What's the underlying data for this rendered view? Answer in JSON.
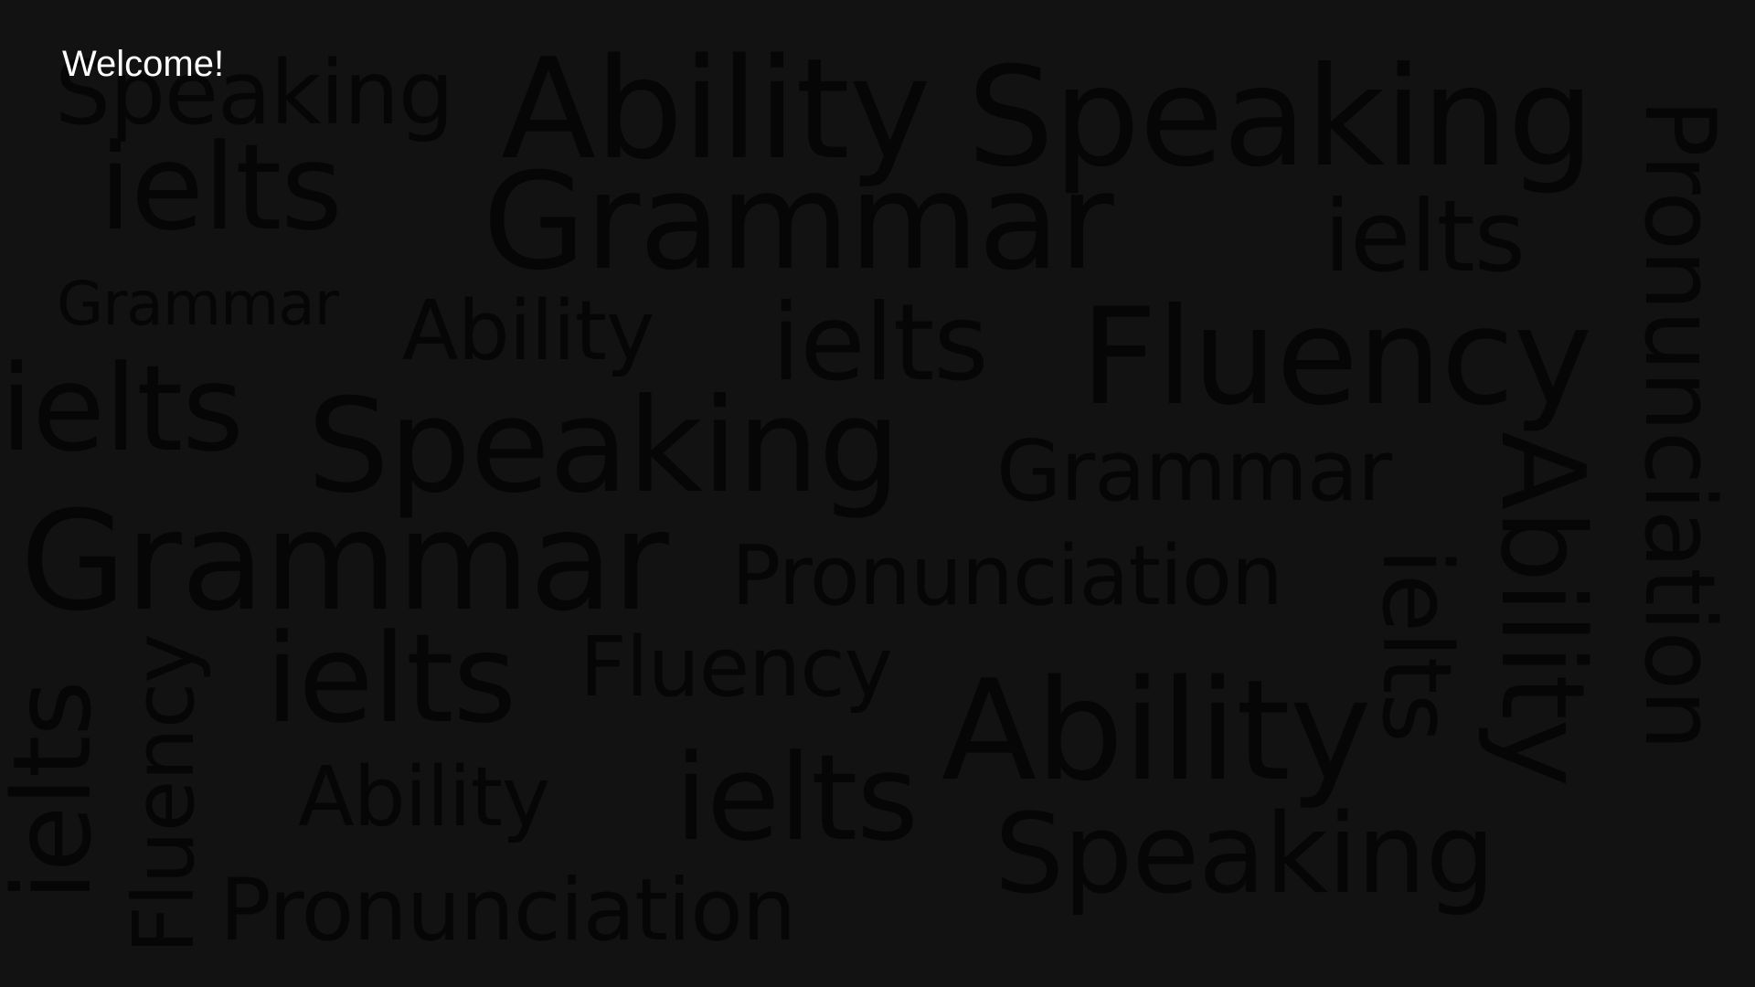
{
  "welcome": "Welcome!",
  "colors": {
    "background": "#121212",
    "cloud_text": "#060606",
    "welcome_text": "#ffffff"
  },
  "cloud": {
    "w01": "Speaking",
    "w02": "Ability",
    "w03": "Speaking",
    "w04": "Pronunciation",
    "w05": "ielts",
    "w06": "Grammar",
    "w07": "ielts",
    "w08": "Grammar",
    "w09": "Ability",
    "w10": "ielts",
    "w11": "Fluency",
    "w12": "ielts",
    "w13": "Speaking",
    "w14": "Grammar",
    "w15": "Ability",
    "w16": "Grammar",
    "w17": "Pronunciation",
    "w18": "ielts",
    "w19": "ielts",
    "w20": "Fluency",
    "w21": "ielts",
    "w22": "Fluency",
    "w23": "Ability",
    "w24": "Ability",
    "w25": "ielts",
    "w26": "Speaking",
    "w27": "Pronunciation"
  }
}
